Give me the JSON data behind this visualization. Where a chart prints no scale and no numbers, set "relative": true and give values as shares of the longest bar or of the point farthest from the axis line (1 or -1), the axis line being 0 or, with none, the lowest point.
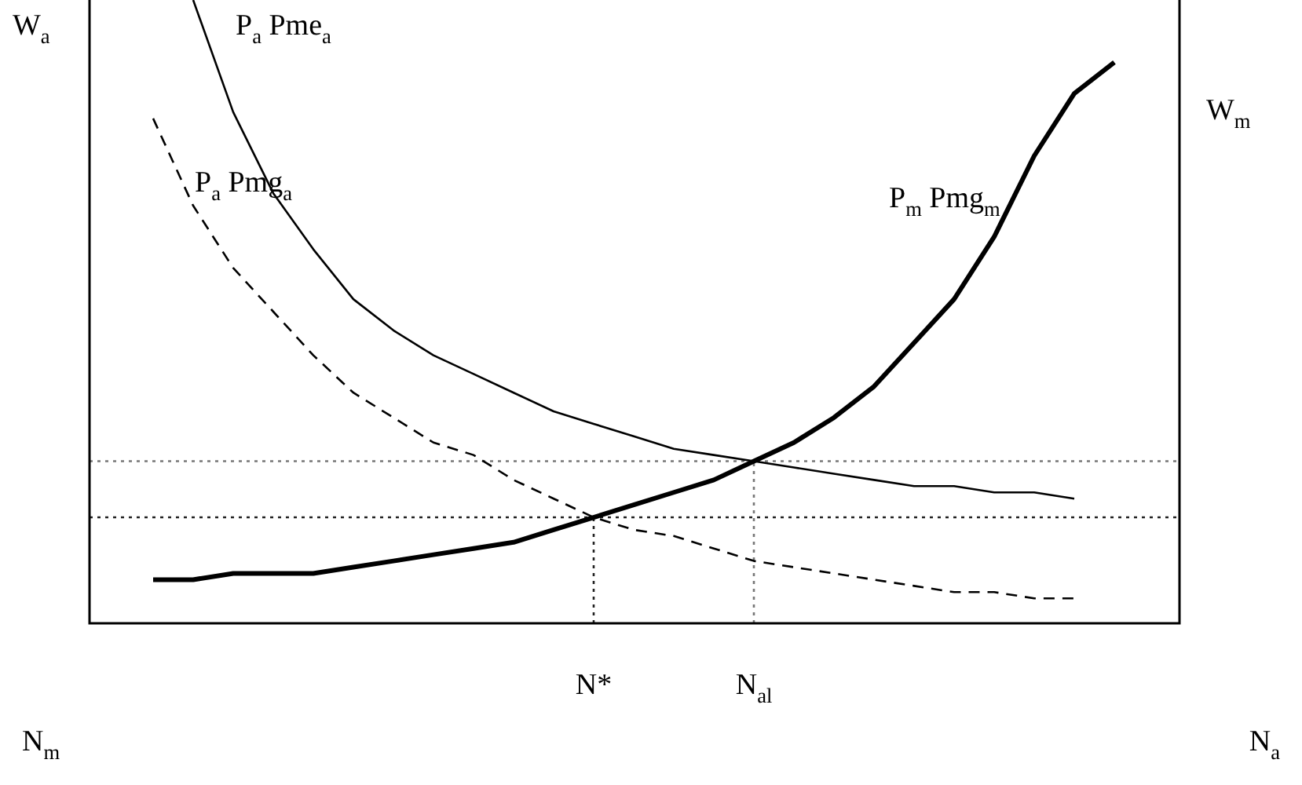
{
  "chart_data": {
    "type": "line",
    "relative": true,
    "ylabel": "W$_{a}$",
    "y2label": "W$_{m}$",
    "categories": [
      null,
      null,
      null,
      null,
      null,
      null,
      null,
      null,
      null,
      null,
      null,
      null,
      "N*",
      null,
      null,
      null,
      "N$_{al}$",
      null,
      null,
      null,
      null,
      null,
      null,
      null,
      null,
      null
    ],
    "series": [
      {
        "name": "P$_{a}$ Pme$_{a}$",
        "color": "#000000",
        "line_style": "solid",
        "values": [
          null,
          null,
          1,
          0.82,
          0.69,
          0.6,
          0.52,
          0.47,
          0.43,
          0.4,
          0.37,
          0.34,
          0.32,
          0.3,
          0.28,
          0.27,
          0.26,
          0.25,
          0.24,
          0.23,
          0.22,
          0.22,
          0.21,
          0.21,
          0.2,
          null
        ]
      },
      {
        "name": "P$_{a}$ Pmg$_{a}$",
        "color": "#000000",
        "line_style": "dashed",
        "values": [
          null,
          0.81,
          0.67,
          0.57,
          0.5,
          0.43,
          0.37,
          0.33,
          0.29,
          0.27,
          0.23,
          0.2,
          0.17,
          0.15,
          0.14,
          0.12,
          0.1,
          0.09,
          0.08,
          0.07,
          0.06,
          0.05,
          0.05,
          0.04,
          0.04,
          null
        ]
      },
      {
        "name": "P$_{m}$ Pmg$_{m}$",
        "color": "#000000",
        "line_style": "solid",
        "values": [
          null,
          0.07,
          0.07,
          0.08,
          0.08,
          0.08,
          0.09,
          0.1,
          0.11,
          0.12,
          0.13,
          0.15,
          0.17,
          0.19,
          0.21,
          0.23,
          0.26,
          0.29,
          0.33,
          0.38,
          0.45,
          0.52,
          0.62,
          0.75,
          0.85,
          0.9
        ]
      }
    ],
    "ref_lines": [
      {
        "axis": "y",
        "value": 0.26,
        "label": null,
        "color": "#777777",
        "line_style": "dotted"
      },
      {
        "axis": "y",
        "value": 0.17,
        "label": null,
        "color": "#222222",
        "line_style": "dotted"
      },
      {
        "axis": "x",
        "value": "N*",
        "label": null,
        "color": "#222222",
        "line_style": "dotted"
      },
      {
        "axis": "x",
        "value": "N$_{al}$",
        "label": null,
        "color": "#777777",
        "line_style": "dotted"
      }
    ],
    "annotations": [
      "N$_{m}$",
      "N$_{a}$"
    ],
    "legend": false,
    "marker": "none"
  }
}
